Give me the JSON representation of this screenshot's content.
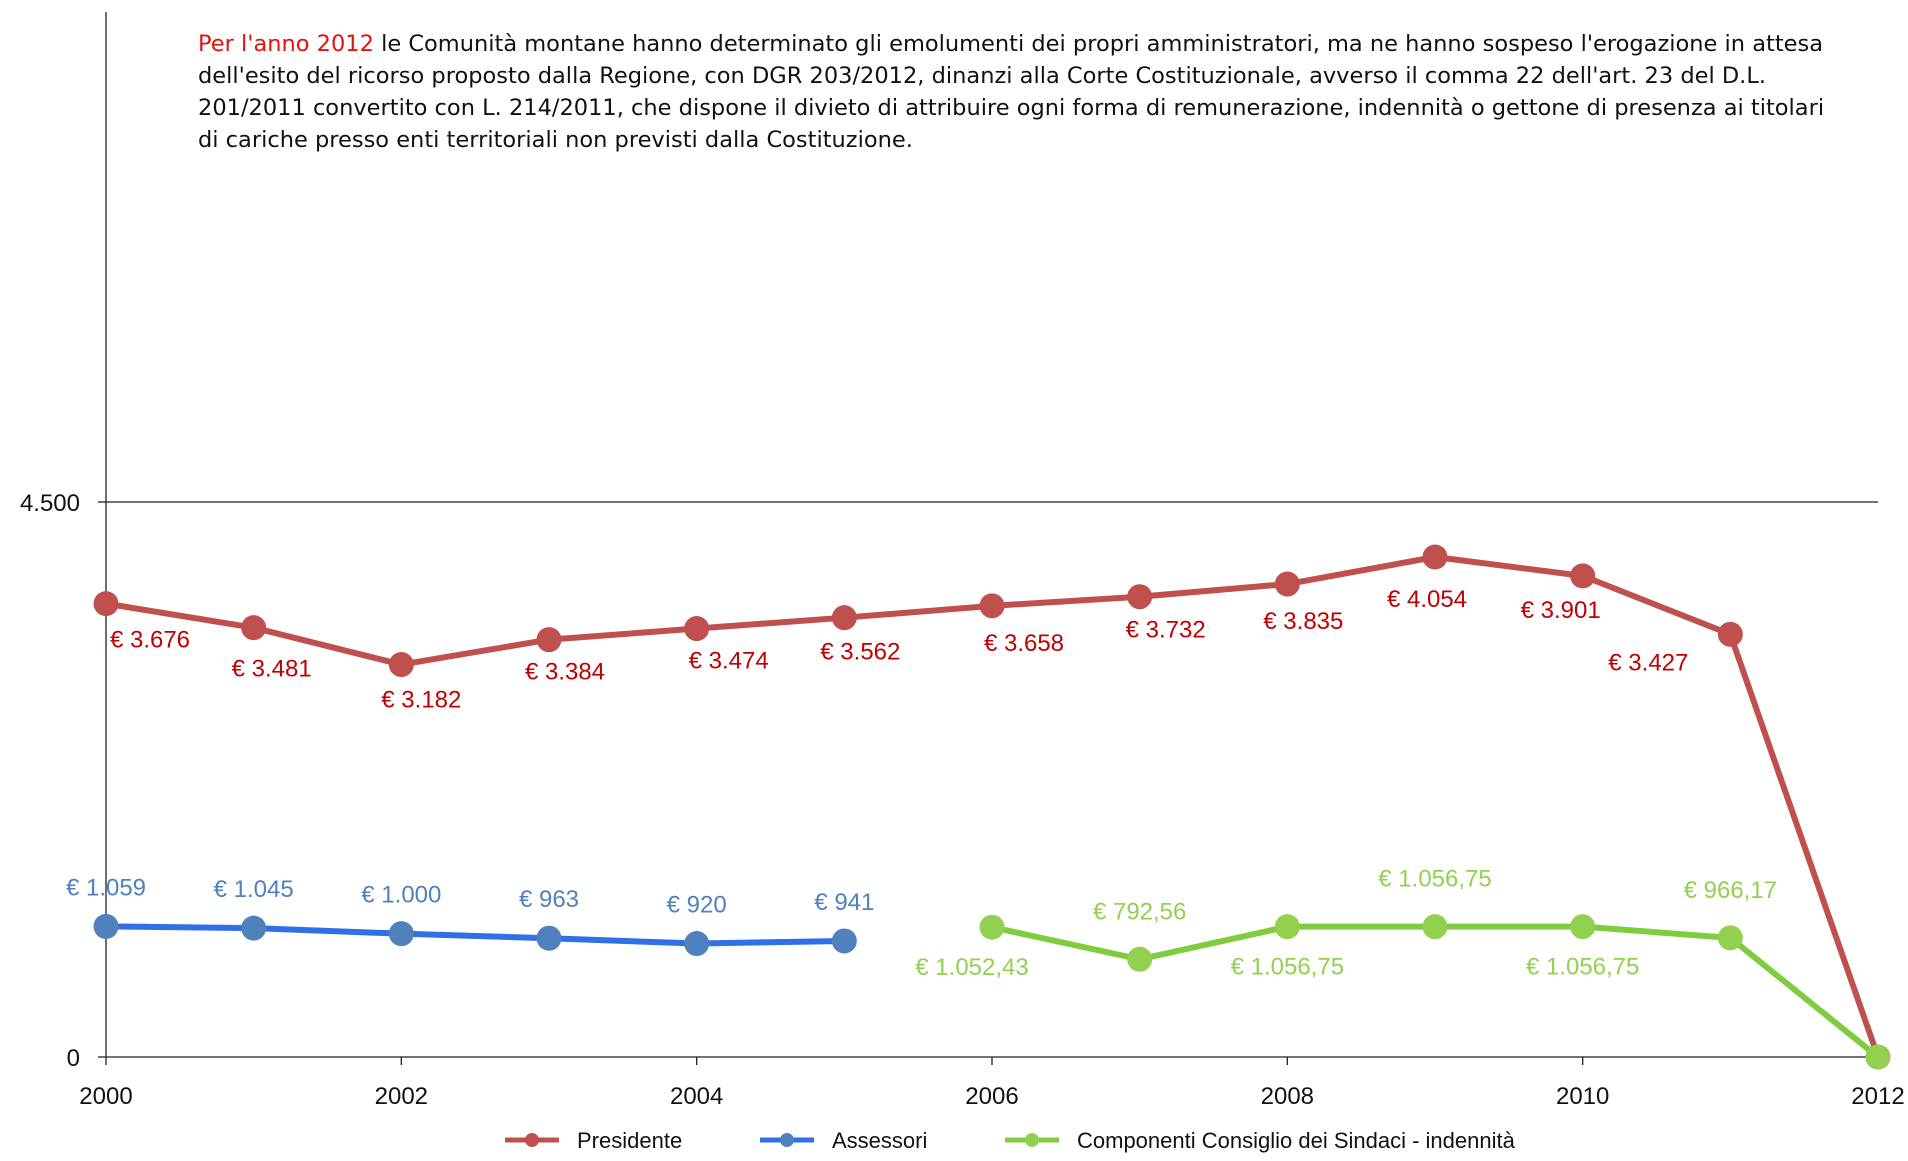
{
  "note": {
    "highlight": "Per l'anno 2012",
    "text": " le Comunità montane hanno determinato gli emolumenti dei propri amministratori, ma ne hanno sospeso l'erogazione in attesa dell'esito del ricorso proposto dalla Regione, con DGR 203/2012, dinanzi alla Corte Costituzionale, avverso il comma 22 dell'art. 23 del D.L. 201/2011 convertito con L. 214/2011, che dispone il divieto di attribuire ogni forma di remunerazione, indennità o gettone di presenza ai titolari di cariche presso enti territoriali non previsti dalla Costituzione."
  },
  "chart_data": {
    "type": "line",
    "title": "",
    "xlabel": "",
    "ylabel": "",
    "xlim": [
      2000,
      2012
    ],
    "ylim": [
      0,
      4500
    ],
    "x_ticks": [
      "2000",
      "2002",
      "2004",
      "2006",
      "2008",
      "2010",
      "2012"
    ],
    "y_ticks": [
      "0",
      "4.500"
    ],
    "grid": false,
    "legend_position": "bottom",
    "series": [
      {
        "name": "Presidente",
        "color": "#c0504d",
        "label_color": "#c00000",
        "points": [
          {
            "x": 2000,
            "y": 3676,
            "label": "€ 3.676"
          },
          {
            "x": 2001,
            "y": 3481,
            "label": "€ 3.481"
          },
          {
            "x": 2002,
            "y": 3182,
            "label": "€ 3.182"
          },
          {
            "x": 2003,
            "y": 3384,
            "label": "€ 3.384"
          },
          {
            "x": 2004,
            "y": 3474,
            "label": "€ 3.474"
          },
          {
            "x": 2005,
            "y": 3562,
            "label": "€ 3.562"
          },
          {
            "x": 2006,
            "y": 3658,
            "label": "€ 3.658"
          },
          {
            "x": 2007,
            "y": 3732,
            "label": "€ 3.732"
          },
          {
            "x": 2008,
            "y": 3835,
            "label": "€ 3.835"
          },
          {
            "x": 2009,
            "y": 4054,
            "label": "€ 4.054"
          },
          {
            "x": 2010,
            "y": 3901,
            "label": "€ 3.901"
          },
          {
            "x": 2011,
            "y": 3427,
            "label": "€ 3.427"
          },
          {
            "x": 2012,
            "y": 0,
            "label": ""
          }
        ]
      },
      {
        "name": "Assessori",
        "color": "#4f81bd",
        "line_color": "#2f6fe8",
        "label_color": "#4f81bd",
        "points": [
          {
            "x": 2000,
            "y": 1059,
            "label": "€ 1.059"
          },
          {
            "x": 2001,
            "y": 1045,
            "label": "€ 1.045"
          },
          {
            "x": 2002,
            "y": 1000,
            "label": "€ 1.000"
          },
          {
            "x": 2003,
            "y": 963,
            "label": "€ 963"
          },
          {
            "x": 2004,
            "y": 920,
            "label": "€ 920"
          },
          {
            "x": 2005,
            "y": 941,
            "label": "€ 941"
          }
        ]
      },
      {
        "name": "Componenti Consiglio dei Sindaci - indennità",
        "color": "#92d050",
        "line_color": "#7fcc40",
        "label_color": "#92d050",
        "points": [
          {
            "x": 2006,
            "y": 1052.43,
            "label": "€ 1.052,43"
          },
          {
            "x": 2007,
            "y": 792.56,
            "label": "€ 792,56"
          },
          {
            "x": 2008,
            "y": 1056.75,
            "label": "€ 1.056,75"
          },
          {
            "x": 2009,
            "y": 1056.75,
            "label": "€ 1.056,75"
          },
          {
            "x": 2010,
            "y": 1056.75,
            "label": "€ 1.056,75"
          },
          {
            "x": 2011,
            "y": 966.17,
            "label": "€ 966,17"
          },
          {
            "x": 2012,
            "y": 0,
            "label": ""
          }
        ]
      }
    ]
  }
}
